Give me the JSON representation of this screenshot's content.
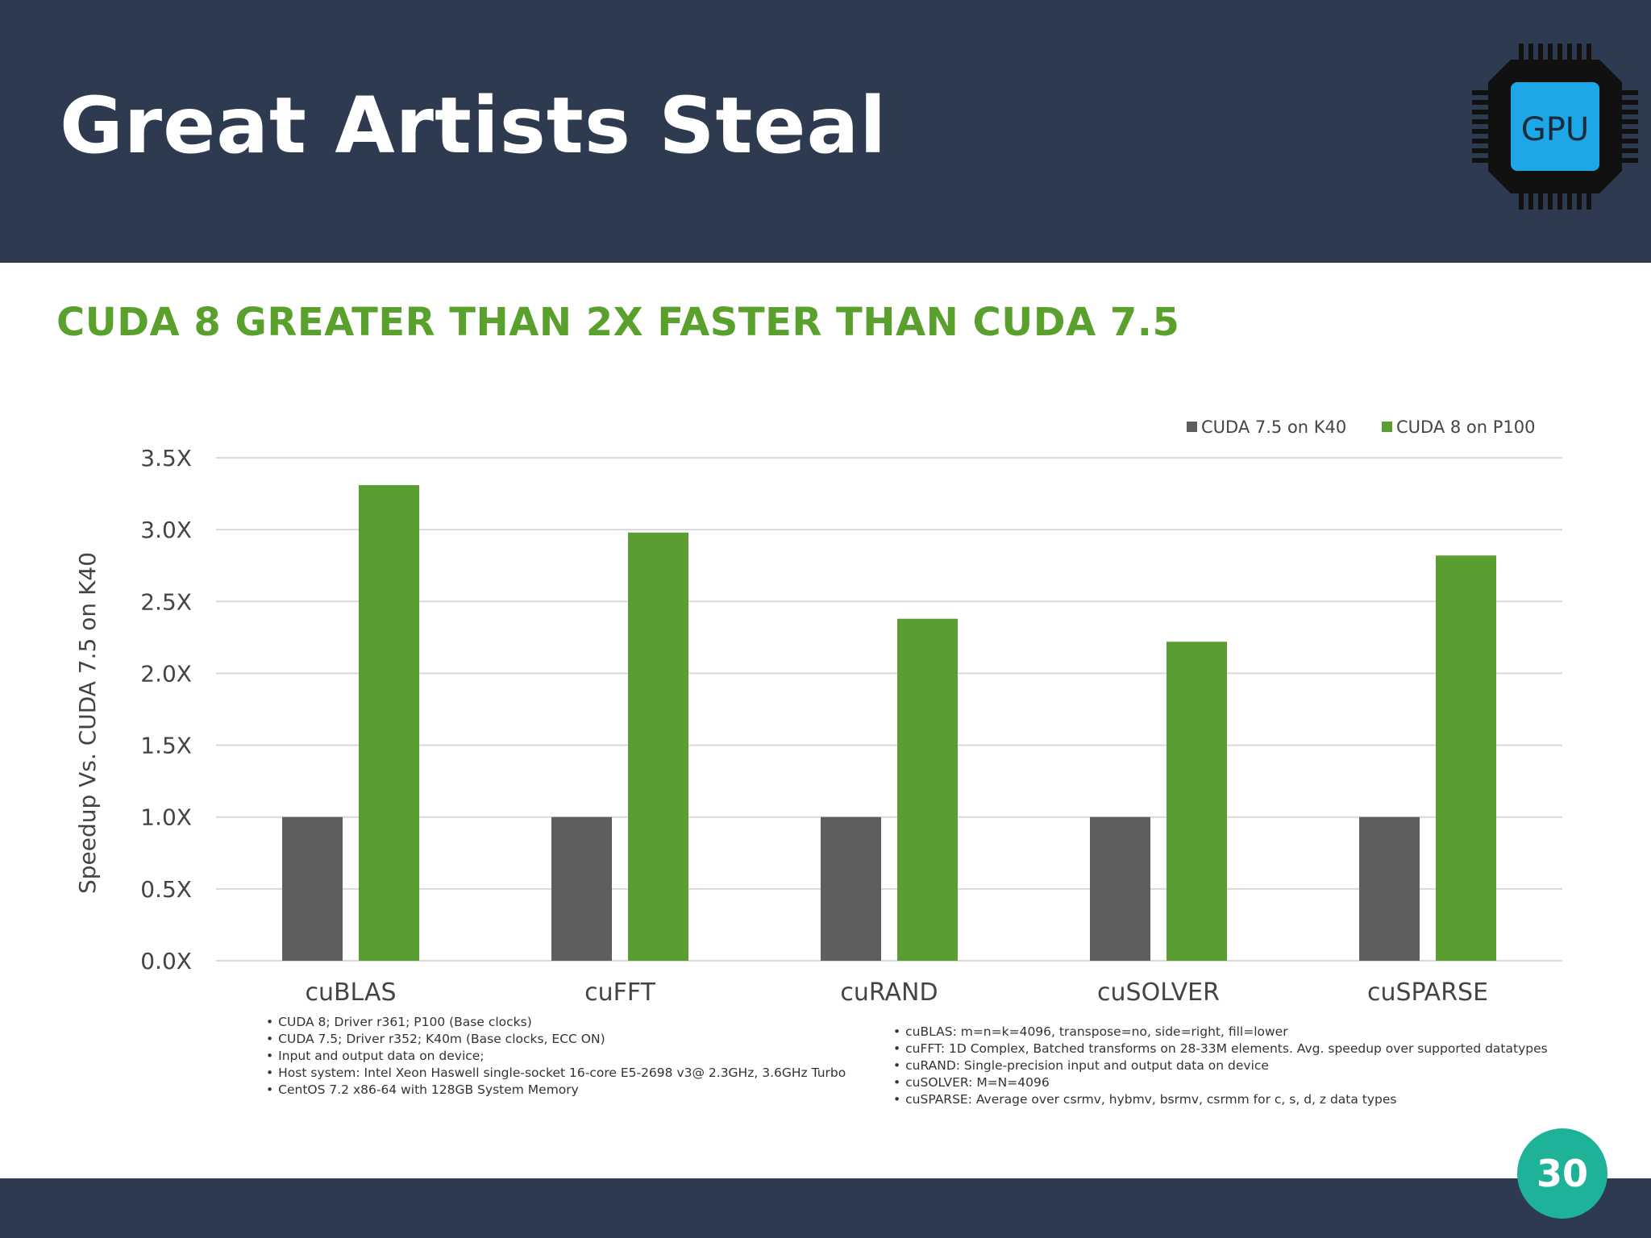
{
  "slide": {
    "title": "Great Artists Steal",
    "logo_text": "GPU",
    "page_number": "30"
  },
  "colors": {
    "header_bg": "#2d3a4f",
    "title_green": "#5aa02c",
    "bar_gray": "#5f5e5e",
    "bar_green": "#5a9e32",
    "badge": "#1eb399",
    "logo_chip": "#1ea7e6"
  },
  "chart_data": {
    "type": "bar",
    "title": "CUDA 8 GREATER THAN 2X FASTER THAN CUDA 7.5",
    "xlabel": "",
    "ylabel": "Speedup Vs. CUDA 7.5 on K40",
    "categories": [
      "cuBLAS",
      "cuFFT",
      "cuRAND",
      "cuSOLVER",
      "cuSPARSE"
    ],
    "series": [
      {
        "name": "CUDA 7.5 on K40",
        "color": "#5f5e5e",
        "values": [
          1.0,
          1.0,
          1.0,
          1.0,
          1.0
        ]
      },
      {
        "name": "CUDA 8 on P100",
        "color": "#5a9e32",
        "values": [
          3.31,
          2.98,
          2.38,
          2.22,
          2.82
        ]
      }
    ],
    "ylim": [
      0,
      3.5
    ],
    "yticks": [
      "0.0X",
      "0.5X",
      "1.0X",
      "1.5X",
      "2.0X",
      "2.5X",
      "3.0X",
      "3.5X"
    ],
    "ytick_values": [
      0,
      0.5,
      1.0,
      1.5,
      2.0,
      2.5,
      3.0,
      3.5
    ],
    "grid": true,
    "legend_position": "top-right"
  },
  "notes": {
    "left": [
      "CUDA 8; Driver r361; P100 (Base clocks)",
      "CUDA 7.5; Driver r352; K40m (Base clocks, ECC ON)",
      "Input and output data on device;",
      "Host system: Intel Xeon Haswell single-socket 16-core E5-2698 v3@ 2.3GHz, 3.6GHz Turbo",
      "CentOS 7.2 x86-64  with 128GB System Memory"
    ],
    "right": [
      "cuBLAS: m=n=k=4096, transpose=no, side=right, fill=lower",
      "cuFFT: 1D Complex, Batched transforms on 28-33M elements. Avg. speedup over supported datatypes",
      "cuRAND: Single-precision input and output data on device",
      "cuSOLVER: M=N=4096",
      "cuSPARSE: Average over csrmv, hybmv, bsrmv, csrmm for c, s, d, z data types"
    ]
  }
}
